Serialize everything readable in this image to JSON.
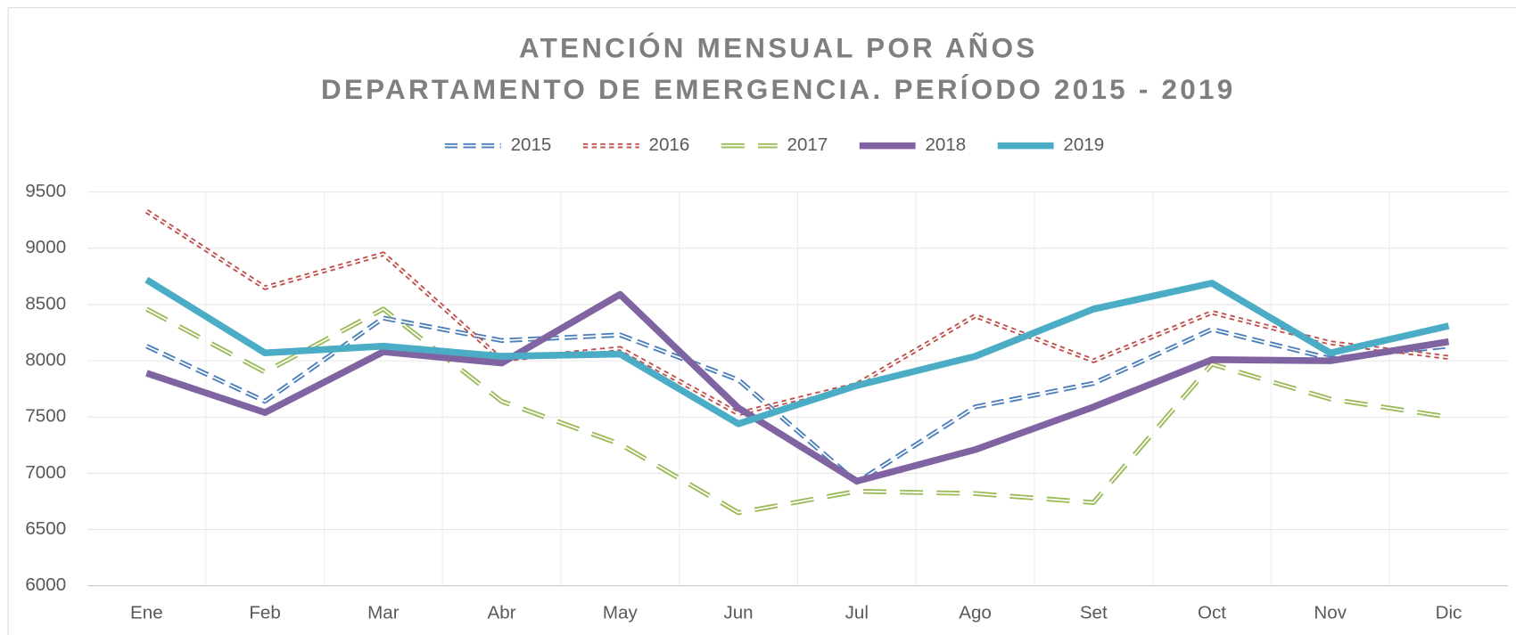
{
  "chart_data": {
    "type": "line",
    "title": [
      "ATENCIÓN MENSUAL POR AÑOS",
      "DEPARTAMENTO DE EMERGENCIA. PERÍODO 2015 - 2019"
    ],
    "categories": [
      "Ene",
      "Feb",
      "Mar",
      "Abr",
      "May",
      "Jun",
      "Jul",
      "Ago",
      "Set",
      "Oct",
      "Nov",
      "Dic"
    ],
    "series": [
      {
        "name": "2015",
        "color": "#4a7ebb",
        "style": "double-dash",
        "values": [
          8130,
          7640,
          8380,
          8180,
          8230,
          7830,
          6920,
          7590,
          7800,
          8280,
          8020,
          8130
        ]
      },
      {
        "name": "2016",
        "color": "#c0504d",
        "style": "double-dot",
        "values": [
          9330,
          8650,
          8950,
          8010,
          8110,
          7530,
          7790,
          8400,
          8000,
          8430,
          8160,
          8030
        ]
      },
      {
        "name": "2017",
        "color": "#9bbb59",
        "style": "double-long-dash",
        "values": [
          8460,
          7900,
          8460,
          7640,
          7260,
          6650,
          6840,
          6820,
          6740,
          7970,
          7660,
          7500
        ]
      },
      {
        "name": "2018",
        "color": "#8064a2",
        "style": "solid",
        "values": [
          7890,
          7540,
          8080,
          7980,
          8590,
          7580,
          6930,
          7210,
          7590,
          8010,
          8000,
          8170
        ]
      },
      {
        "name": "2019",
        "color": "#4bacc6",
        "style": "solid",
        "values": [
          8720,
          8070,
          8130,
          8040,
          8060,
          7440,
          7780,
          8040,
          8460,
          8690,
          8070,
          8310
        ]
      }
    ],
    "ylim": [
      6000,
      9500
    ],
    "yticks": [
      6000,
      6500,
      7000,
      7500,
      8000,
      8500,
      9000,
      9500
    ],
    "grid": true,
    "legend": "top"
  }
}
